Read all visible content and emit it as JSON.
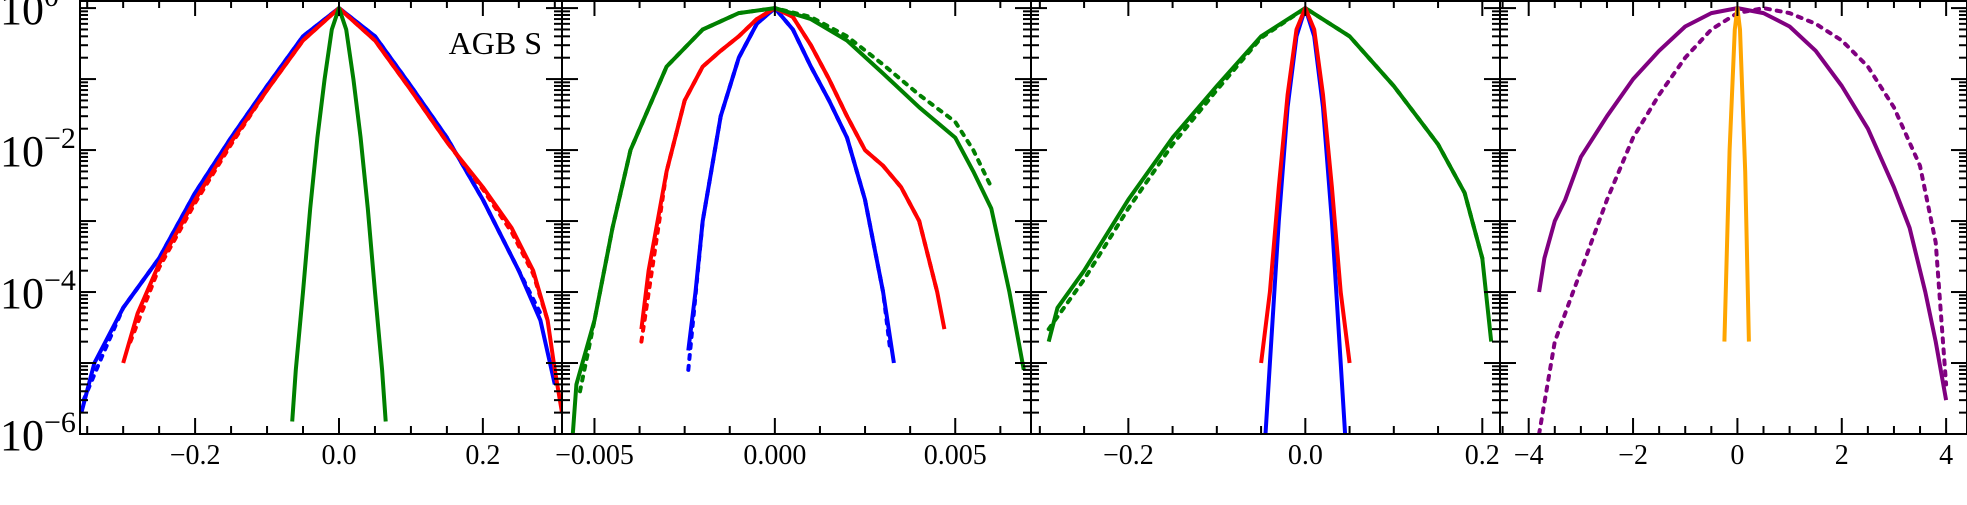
{
  "chart_data": [
    {
      "type": "line",
      "title": "AGB S",
      "xlim": [
        -0.36,
        0.31
      ],
      "ylim": [
        1e-06,
        1.3
      ],
      "yscale": "log",
      "xticks": [
        -0.2,
        0.0,
        0.2
      ],
      "xtick_labels": [
        "−0.2",
        "0.0",
        "0.2"
      ],
      "yticks": [
        1e-06,
        0.0001,
        0.01,
        1
      ],
      "ytick_labels": [
        {
          "base": "10",
          "exp": "−6"
        },
        {
          "base": "10",
          "exp": "−4"
        },
        {
          "base": "10",
          "exp": "−2"
        },
        {
          "base": "10",
          "exp": "0"
        }
      ],
      "series": [
        {
          "color": "#0000ff",
          "style": "solid",
          "x": [
            -0.358,
            -0.34,
            -0.3,
            -0.25,
            -0.2,
            -0.15,
            -0.1,
            -0.05,
            0.0,
            0.05,
            0.1,
            0.15,
            0.2,
            0.25,
            0.28,
            0.3
          ],
          "y": [
            2e-06,
            1e-05,
            6e-05,
            0.0003,
            0.0025,
            0.015,
            0.08,
            0.4,
            1.0,
            0.4,
            0.08,
            0.015,
            0.002,
            0.0002,
            4e-05,
            5e-06
          ]
        },
        {
          "color": "#0000ff",
          "style": "dotted",
          "x": [
            -0.355,
            -0.33,
            -0.3,
            -0.25,
            -0.2,
            -0.15,
            -0.1,
            -0.05,
            0.0,
            0.05,
            0.1,
            0.15,
            0.2,
            0.25,
            0.28
          ],
          "y": [
            3e-06,
            1.2e-05,
            6e-05,
            0.0003,
            0.0025,
            0.015,
            0.08,
            0.4,
            1.0,
            0.4,
            0.08,
            0.015,
            0.002,
            0.0002,
            5e-05
          ]
        },
        {
          "color": "#ff0000",
          "style": "solid",
          "x": [
            -0.3,
            -0.28,
            -0.25,
            -0.2,
            -0.15,
            -0.1,
            -0.05,
            0.0,
            0.05,
            0.1,
            0.15,
            0.2,
            0.24,
            0.27,
            0.29,
            0.3,
            0.31
          ],
          "y": [
            1e-05,
            5e-05,
            0.00025,
            0.002,
            0.013,
            0.07,
            0.35,
            1.0,
            0.35,
            0.07,
            0.013,
            0.003,
            0.0008,
            0.0002,
            4e-05,
            8e-06,
            2e-06
          ]
        },
        {
          "color": "#ff0000",
          "style": "dotted",
          "x": [
            -0.29,
            -0.25,
            -0.2,
            -0.15,
            -0.1,
            -0.05,
            0.0,
            0.05,
            0.1,
            0.15,
            0.2,
            0.24,
            0.27,
            0.29
          ],
          "y": [
            2e-05,
            0.00022,
            0.0018,
            0.012,
            0.07,
            0.35,
            1.0,
            0.35,
            0.07,
            0.013,
            0.0028,
            0.0007,
            0.00018,
            4e-05
          ]
        },
        {
          "color": "#008000",
          "style": "solid",
          "x": [
            -0.065,
            -0.06,
            -0.05,
            -0.04,
            -0.03,
            -0.02,
            -0.01,
            0.0,
            0.01,
            0.02,
            0.03,
            0.04,
            0.05,
            0.06,
            0.065
          ],
          "y": [
            1.5e-06,
            8e-06,
            0.0001,
            0.0015,
            0.015,
            0.1,
            0.5,
            1.0,
            0.5,
            0.1,
            0.015,
            0.0015,
            0.0001,
            8e-06,
            1.5e-06
          ]
        }
      ]
    },
    {
      "type": "line",
      "title": "",
      "xlim": [
        -0.0059,
        0.0071
      ],
      "ylim": [
        1e-06,
        1.3
      ],
      "yscale": "log",
      "xticks": [
        -0.005,
        0.0,
        0.005
      ],
      "xtick_labels": [
        "−0.005",
        "0.000",
        "0.005"
      ],
      "series": [
        {
          "color": "#0000ff",
          "style": "solid",
          "x": [
            -0.0024,
            -0.0022,
            -0.002,
            -0.0015,
            -0.001,
            -0.0005,
            0.0,
            0.0005,
            0.001,
            0.0015,
            0.002,
            0.0025,
            0.003,
            0.0033
          ],
          "y": [
            1.5e-05,
            0.0001,
            0.001,
            0.03,
            0.2,
            0.6,
            1.0,
            0.5,
            0.15,
            0.05,
            0.015,
            0.002,
            0.0001,
            1e-05
          ]
        },
        {
          "color": "#0000ff",
          "style": "dotted",
          "x": [
            -0.0024,
            -0.002,
            -0.0015,
            -0.001,
            -0.0005,
            0.0,
            0.0005,
            0.001,
            0.0015,
            0.002,
            0.0025,
            0.003,
            0.0032
          ],
          "y": [
            8e-06,
            0.001,
            0.03,
            0.2,
            0.6,
            1.0,
            0.5,
            0.15,
            0.05,
            0.015,
            0.002,
            0.0001,
            1.5e-05
          ]
        },
        {
          "color": "#ff0000",
          "style": "solid",
          "x": [
            -0.0037,
            -0.0035,
            -0.003,
            -0.0025,
            -0.002,
            -0.0015,
            -0.001,
            -0.0005,
            0.0,
            0.0005,
            0.001,
            0.0015,
            0.002,
            0.0025,
            0.003,
            0.0035,
            0.004,
            0.0045,
            0.0047
          ],
          "y": [
            3e-05,
            0.0002,
            0.005,
            0.05,
            0.15,
            0.25,
            0.4,
            0.7,
            1.0,
            0.75,
            0.3,
            0.1,
            0.03,
            0.01,
            0.006,
            0.003,
            0.001,
            0.0001,
            3e-05
          ]
        },
        {
          "color": "#ff0000",
          "style": "dotted",
          "x": [
            -0.0037,
            -0.003,
            -0.0025,
            -0.002,
            -0.0015,
            -0.001,
            -0.0005,
            0.0,
            0.0005,
            0.001,
            0.0015,
            0.002,
            0.0025,
            0.003,
            0.0035,
            0.004,
            0.0045
          ],
          "y": [
            2e-05,
            0.005,
            0.05,
            0.15,
            0.25,
            0.4,
            0.7,
            1.0,
            0.75,
            0.3,
            0.1,
            0.03,
            0.01,
            0.006,
            0.003,
            0.001,
            0.0001
          ]
        },
        {
          "color": "#008000",
          "style": "solid",
          "x": [
            -0.0056,
            -0.0055,
            -0.005,
            -0.0045,
            -0.004,
            -0.003,
            -0.002,
            -0.001,
            0.0,
            0.001,
            0.002,
            0.003,
            0.004,
            0.005,
            0.0055,
            0.006,
            0.0065,
            0.0069
          ],
          "y": [
            1e-06,
            5e-06,
            4e-05,
            0.0008,
            0.01,
            0.15,
            0.5,
            0.85,
            1.0,
            0.7,
            0.35,
            0.12,
            0.04,
            0.015,
            0.005,
            0.0015,
            0.0001,
            8e-06
          ]
        },
        {
          "color": "#008000",
          "style": "dotted",
          "x": [
            -0.0054,
            -0.005,
            -0.0045,
            -0.004,
            -0.003,
            -0.002,
            -0.001,
            0.0,
            0.001,
            0.002,
            0.003,
            0.004,
            0.005,
            0.0055,
            0.006
          ],
          "y": [
            4e-06,
            4e-05,
            0.0008,
            0.01,
            0.15,
            0.5,
            0.85,
            1.0,
            0.75,
            0.4,
            0.16,
            0.06,
            0.025,
            0.01,
            0.003
          ]
        }
      ]
    },
    {
      "type": "line",
      "title": "",
      "xlim": [
        -0.31,
        0.22
      ],
      "ylim": [
        1e-06,
        1.3
      ],
      "yscale": "log",
      "xticks": [
        -0.2,
        0.0,
        0.2
      ],
      "xtick_labels": [
        "−0.2",
        "0.0",
        "0.2"
      ],
      "series": [
        {
          "color": "#008000",
          "style": "solid",
          "x": [
            -0.29,
            -0.28,
            -0.25,
            -0.2,
            -0.15,
            -0.1,
            -0.05,
            0.0,
            0.05,
            0.1,
            0.15,
            0.18,
            0.2,
            0.21
          ],
          "y": [
            2e-05,
            6e-05,
            0.0002,
            0.002,
            0.015,
            0.08,
            0.4,
            1.0,
            0.4,
            0.08,
            0.012,
            0.0025,
            0.0003,
            2e-05
          ]
        },
        {
          "color": "#008000",
          "style": "dotted",
          "x": [
            -0.29,
            -0.25,
            -0.2,
            -0.15,
            -0.1,
            -0.05,
            0.0,
            0.05,
            0.1,
            0.15,
            0.18,
            0.2
          ],
          "y": [
            3e-05,
            0.00015,
            0.0015,
            0.012,
            0.07,
            0.38,
            1.0,
            0.4,
            0.08,
            0.012,
            0.0025,
            0.0003
          ]
        },
        {
          "color": "#0000ff",
          "style": "solid",
          "x": [
            -0.045,
            -0.04,
            -0.03,
            -0.02,
            -0.01,
            0.0,
            0.01,
            0.02,
            0.03,
            0.04,
            0.045
          ],
          "y": [
            1e-06,
            1e-05,
            0.001,
            0.04,
            0.4,
            1.0,
            0.4,
            0.04,
            0.001,
            1e-05,
            1e-06
          ]
        },
        {
          "color": "#ff0000",
          "style": "solid",
          "x": [
            -0.05,
            -0.04,
            -0.03,
            -0.02,
            -0.01,
            0.0,
            0.01,
            0.02,
            0.03,
            0.04,
            0.05
          ],
          "y": [
            1e-05,
            0.0001,
            0.003,
            0.06,
            0.5,
            1.0,
            0.5,
            0.06,
            0.003,
            0.0001,
            1e-05
          ]
        }
      ]
    },
    {
      "type": "line",
      "title": "",
      "xlim": [
        -4.55,
        4.4
      ],
      "ylim": [
        1e-06,
        1.3
      ],
      "yscale": "log",
      "xticks": [
        -4,
        -2,
        0,
        2,
        4
      ],
      "xtick_labels": [
        "−4",
        "−2",
        "0",
        "2",
        "4"
      ],
      "series": [
        {
          "color": "#800080",
          "style": "solid",
          "x": [
            -3.8,
            -3.7,
            -3.5,
            -3.3,
            -3.0,
            -2.5,
            -2.0,
            -1.5,
            -1.0,
            -0.5,
            0.0,
            0.5,
            1.0,
            1.5,
            2.0,
            2.5,
            3.0,
            3.3,
            3.6,
            3.8,
            4.0
          ],
          "y": [
            0.0001,
            0.0003,
            0.001,
            0.002,
            0.008,
            0.03,
            0.1,
            0.25,
            0.55,
            0.85,
            1.0,
            0.85,
            0.55,
            0.25,
            0.08,
            0.02,
            0.003,
            0.0008,
            0.0001,
            2e-05,
            3e-06
          ]
        },
        {
          "color": "#800080",
          "style": "dotted",
          "x": [
            -3.8,
            -3.5,
            -3.0,
            -2.5,
            -2.0,
            -1.5,
            -1.0,
            -0.5,
            0.0,
            0.5,
            1.0,
            1.5,
            2.0,
            2.5,
            3.0,
            3.5,
            3.8,
            4.0
          ],
          "y": [
            1e-06,
            2e-05,
            0.0002,
            0.002,
            0.015,
            0.06,
            0.2,
            0.5,
            0.85,
            1.0,
            0.85,
            0.6,
            0.35,
            0.15,
            0.04,
            0.006,
            0.0005,
            5e-06
          ]
        },
        {
          "color": "#ffa500",
          "style": "solid",
          "x": [
            -0.25,
            -0.15,
            -0.05,
            0.0,
            0.05,
            0.15,
            0.22
          ],
          "y": [
            2e-05,
            0.01,
            0.5,
            1.0,
            0.5,
            0.005,
            2e-05
          ]
        }
      ]
    }
  ]
}
